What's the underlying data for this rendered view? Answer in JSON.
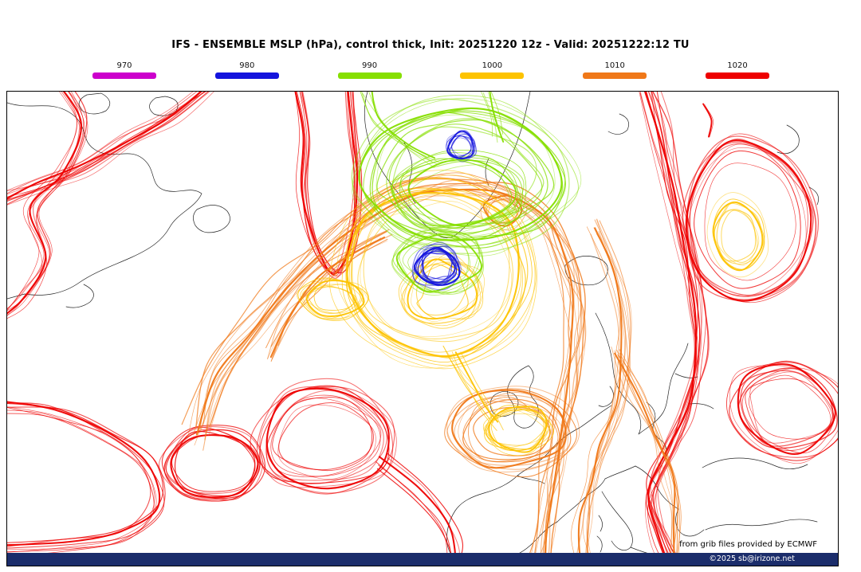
{
  "title": "IFS - ENSEMBLE MSLP (hPa), control thick, Init: 20251220 12z - Valid: 20251222:12 TU",
  "legend": {
    "items": [
      {
        "label": "970",
        "color": "#cc00cc"
      },
      {
        "label": "980",
        "color": "#1414dd"
      },
      {
        "label": "990",
        "color": "#86df00"
      },
      {
        "label": "1000",
        "color": "#fdc300"
      },
      {
        "label": "1010",
        "color": "#f07818"
      },
      {
        "label": "1020",
        "color": "#ee0000"
      }
    ]
  },
  "map": {
    "attribution_line1": "from grib files provided by ECMWF",
    "attribution_line2": "©2025 sb@irizone.net",
    "footer_bg": "#1b2d6b",
    "coast_color": "#1a1a1a"
  },
  "chart_data": {
    "type": "contour-ensemble-spaghetti",
    "title": "IFS - ENSEMBLE MSLP (hPa), control thick",
    "init": "20251220 12z",
    "valid": "20251222:12 TU",
    "variable": "MSLP (hPa)",
    "levels": [
      970,
      980,
      990,
      1000,
      1010,
      1020
    ],
    "level_colors": {
      "970": "#cc00cc",
      "980": "#1414dd",
      "990": "#86df00",
      "1000": "#fdc300",
      "1010": "#f07818",
      "1020": "#ee0000"
    },
    "legend_position": "top",
    "region": "North Atlantic / Europe"
  }
}
